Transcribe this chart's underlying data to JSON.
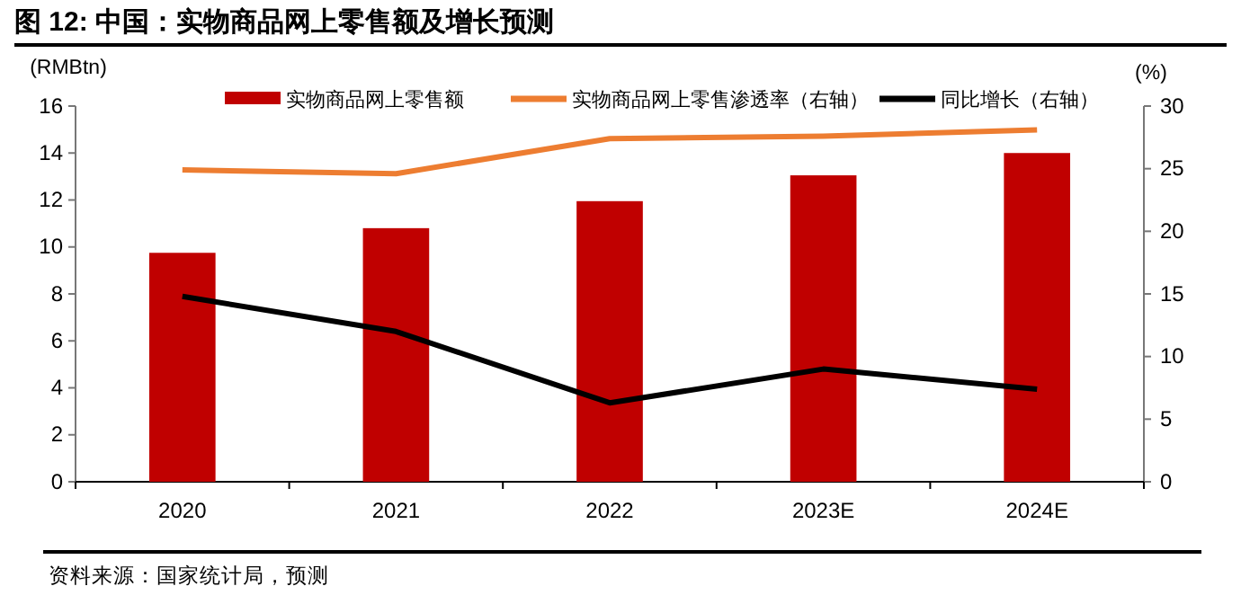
{
  "chart_data": {
    "type": "bar",
    "title": "图 12: 中国：实物商品网上零售额及增长预测",
    "ylabel": "(RMBtn)",
    "y2label": "(%)",
    "categories": [
      "2020",
      "2021",
      "2022",
      "2023E",
      "2024E"
    ],
    "series": [
      {
        "name": "实物商品网上零售额",
        "color": "#c00000",
        "values": [
          9.75,
          10.8,
          11.95,
          13.05,
          14.0
        ]
      },
      {
        "name": "实物商品网上零售渗透率（右轴）",
        "type": "line",
        "axis": "y2",
        "color": "#ed7d31",
        "values": [
          24.9,
          24.6,
          27.4,
          27.6,
          28.1
        ]
      },
      {
        "name": "同比增长（右轴）",
        "type": "line",
        "axis": "y2",
        "color": "#000000",
        "values": [
          14.8,
          12.0,
          6.3,
          9.0,
          7.4
        ]
      }
    ],
    "ylim": [
      0,
      16
    ],
    "yticks": [
      0,
      2,
      4,
      6,
      8,
      10,
      12,
      14,
      16
    ],
    "y2lim": [
      0,
      30
    ],
    "y2ticks": [
      0,
      5,
      10,
      15,
      20,
      25,
      30
    ],
    "legend": "top",
    "grid": false,
    "annotations": [
      "资料来源：国家统计局，预测"
    ]
  }
}
